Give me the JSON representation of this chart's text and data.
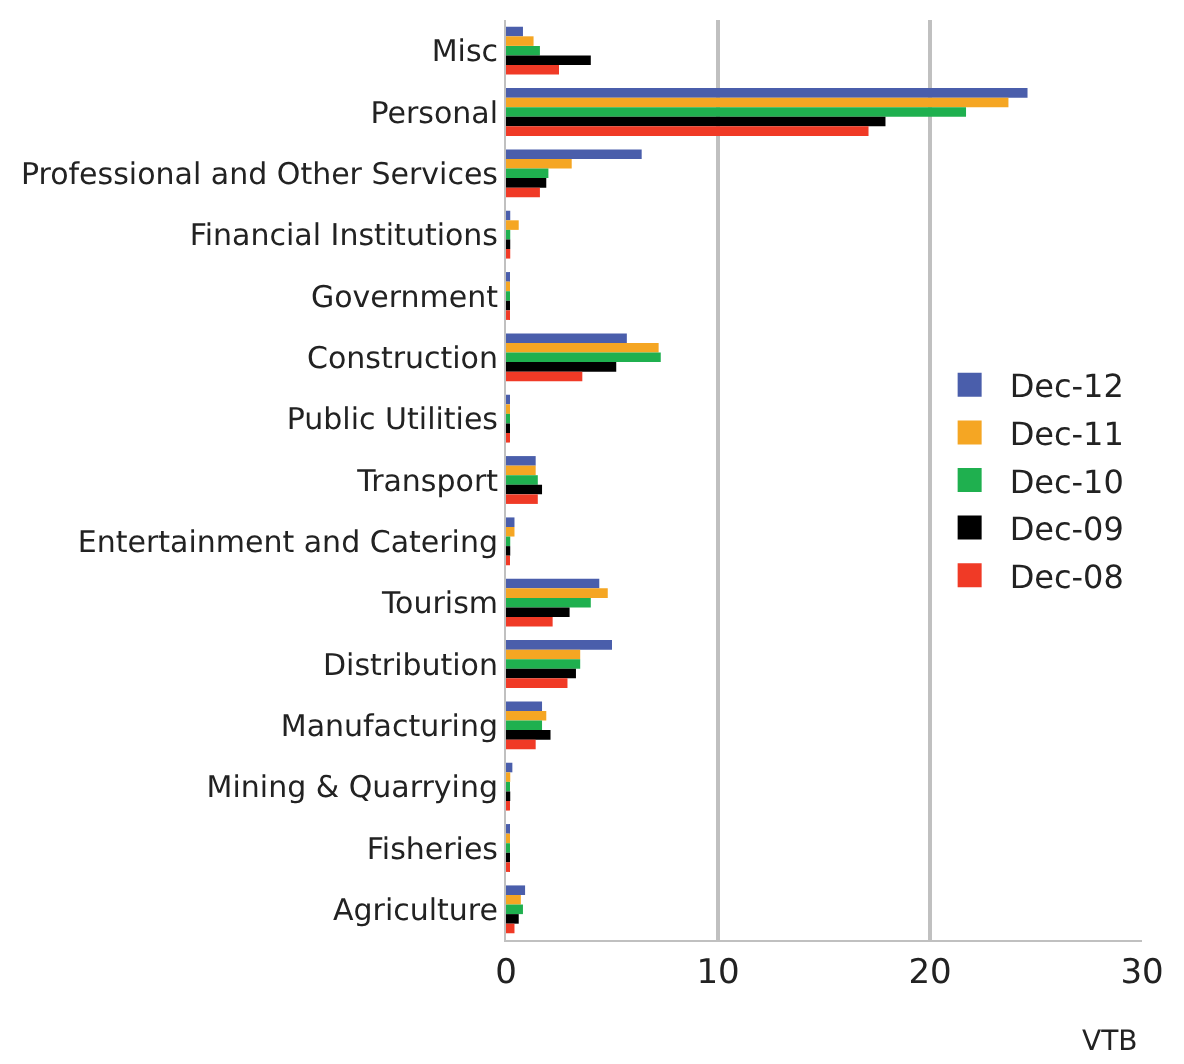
{
  "chart_data": {
    "type": "bar",
    "orientation": "horizontal",
    "xlabel": "VTB",
    "categories": [
      "Misc",
      "Personal",
      "Professional and Other Services",
      "Financial Institutions",
      "Government",
      "Construction",
      "Public Utilities",
      "Transport",
      "Entertainment and Catering",
      "Tourism",
      "Distribution",
      "Manufacturing",
      "Mining & Quarrying",
      "Fisheries",
      "Agriculture"
    ],
    "series": [
      {
        "name": "Dec-12",
        "color": "#4a5eab",
        "values": [
          0.8,
          24.6,
          6.4,
          0.2,
          0.1,
          5.7,
          0.1,
          1.4,
          0.4,
          4.4,
          5.0,
          1.7,
          0.3,
          0.1,
          0.9
        ]
      },
      {
        "name": "Dec-11",
        "color": "#f5a623",
        "values": [
          1.3,
          23.7,
          3.1,
          0.6,
          0.1,
          7.2,
          0.1,
          1.4,
          0.4,
          4.8,
          3.5,
          1.9,
          0.2,
          0.1,
          0.7
        ]
      },
      {
        "name": "Dec-10",
        "color": "#1fb04f",
        "values": [
          1.6,
          21.7,
          2.0,
          0.2,
          0.1,
          7.3,
          0.1,
          1.5,
          0.2,
          4.0,
          3.5,
          1.7,
          0.1,
          0.1,
          0.8
        ]
      },
      {
        "name": "Dec-09",
        "color": "#000000",
        "values": [
          4.0,
          17.9,
          1.9,
          0.2,
          0.1,
          5.2,
          0.1,
          1.7,
          0.2,
          3.0,
          3.3,
          2.1,
          0.2,
          0.1,
          0.6
        ]
      },
      {
        "name": "Dec-08",
        "color": "#f03a26",
        "values": [
          2.5,
          17.1,
          1.6,
          0.2,
          0.1,
          3.6,
          0.1,
          1.5,
          0.1,
          2.2,
          2.9,
          1.4,
          0.1,
          0.1,
          0.4
        ]
      }
    ],
    "xlim": [
      0,
      30
    ],
    "xticks": [
      0,
      10,
      20,
      30
    ],
    "grid": "x",
    "legend": "right"
  }
}
